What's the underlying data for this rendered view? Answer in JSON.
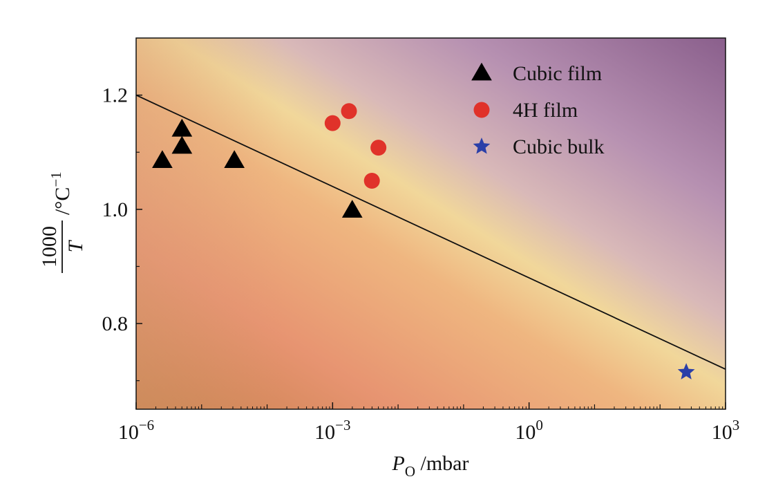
{
  "chart_data": {
    "type": "scatter",
    "title": "",
    "x_axis": {
      "scale": "log",
      "range_log10": [
        -6,
        3
      ],
      "ticks": [
        {
          "exp": -6,
          "base": "10",
          "sup": "−6"
        },
        {
          "exp": -3,
          "base": "10",
          "sup": "−3"
        },
        {
          "exp": 0,
          "base": "10",
          "sup": "0"
        },
        {
          "exp": 3,
          "base": "10",
          "sup": "3"
        }
      ],
      "label_var": "P",
      "label_sub": "O",
      "label_unit": " /mbar"
    },
    "y_axis": {
      "range": [
        0.65,
        1.3
      ],
      "ticks": [
        {
          "value": 0.8,
          "label": "0.8"
        },
        {
          "value": 1.0,
          "label": "1.0"
        },
        {
          "value": 1.2,
          "label": "1.2"
        }
      ],
      "label_num": "1000",
      "label_den": "T",
      "label_unit": "/°C",
      "label_sup": "−1"
    },
    "series": [
      {
        "name": "Cubic film",
        "marker": "triangle",
        "color": "#000000",
        "points": [
          {
            "log10x": -5.6,
            "y": 1.085
          },
          {
            "log10x": -5.3,
            "y": 1.11
          },
          {
            "log10x": -5.3,
            "y": 1.14
          },
          {
            "log10x": -4.5,
            "y": 1.085
          },
          {
            "log10x": -2.7,
            "y": 0.998
          }
        ]
      },
      {
        "name": "4H film",
        "marker": "circle",
        "color": "#e0322a",
        "points": [
          {
            "log10x": -3.0,
            "y": 1.151
          },
          {
            "log10x": -2.75,
            "y": 1.172
          },
          {
            "log10x": -2.3,
            "y": 1.108
          },
          {
            "log10x": -2.4,
            "y": 1.05
          }
        ]
      },
      {
        "name": "Cubic bulk",
        "marker": "star",
        "color": "#2a3fa8",
        "points": [
          {
            "log10x": 2.4,
            "y": 0.715
          }
        ]
      }
    ],
    "boundary_line": {
      "from": {
        "log10x": -6,
        "y": 1.2
      },
      "to": {
        "log10x": 3,
        "y": 0.72
      }
    },
    "legend": {
      "position": "top-right",
      "entries": [
        "Cubic film",
        "4H film",
        "Cubic bulk"
      ]
    },
    "grid": false
  },
  "colors": {
    "top_right": "#8a5f8c",
    "upper_mid": "#c9a3bd",
    "band": "#f1d79a",
    "lower_left": "#c7804b",
    "lower_mid": "#e79471"
  }
}
